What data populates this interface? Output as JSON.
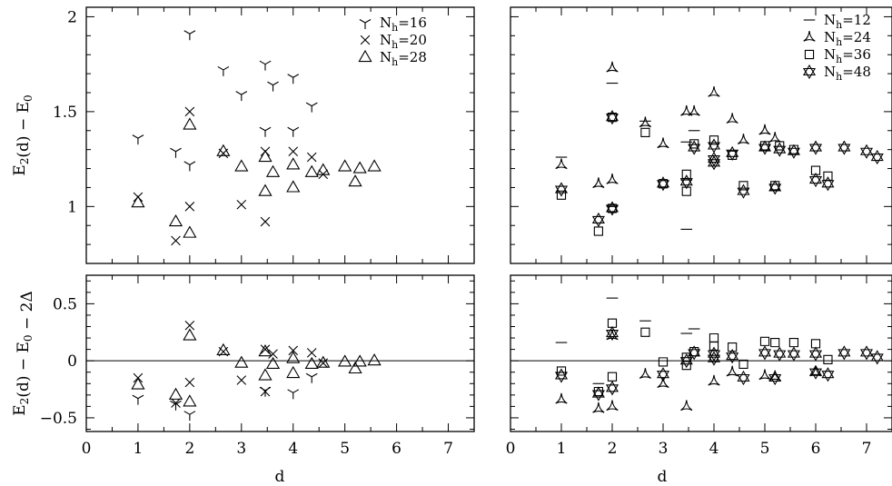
{
  "chart_data": [
    {
      "type": "scatter",
      "panel": "top-left",
      "ylabel": "E2(d) − E0",
      "xlim": [
        0,
        7.5
      ],
      "ylim": [
        0.7,
        2.05
      ],
      "yticks": [
        1,
        1.5,
        2
      ],
      "ytick_labels": [
        "1",
        "1.5",
        "2"
      ],
      "legend_position": "top-right",
      "series": [
        {
          "name": "Nh=16",
          "marker": "tri-down",
          "x": [
            1.0,
            1.73,
            2.0,
            2.0,
            2.65,
            3.0,
            3.46,
            3.46,
            3.61,
            4.0,
            4.0,
            4.36
          ],
          "y": [
            1.36,
            1.29,
            1.91,
            1.22,
            1.72,
            1.59,
            1.75,
            1.4,
            1.64,
            1.68,
            1.4,
            1.53
          ]
        },
        {
          "name": "Nh=20",
          "marker": "x",
          "x": [
            1.0,
            1.73,
            2.0,
            2.0,
            2.65,
            3.0,
            3.46,
            3.46,
            4.0,
            4.36,
            4.58
          ],
          "y": [
            1.05,
            0.82,
            1.5,
            1.0,
            1.28,
            1.01,
            1.29,
            0.92,
            1.29,
            1.26,
            1.17
          ]
        },
        {
          "name": "Nh=28",
          "marker": "triangle",
          "x": [
            1.0,
            1.73,
            2.0,
            2.0,
            2.65,
            3.0,
            3.46,
            3.46,
            3.61,
            4.0,
            4.0,
            4.36,
            4.58,
            5.0,
            5.2,
            5.29,
            5.57
          ],
          "y": [
            1.02,
            0.92,
            1.43,
            0.86,
            1.29,
            1.21,
            1.26,
            1.08,
            1.18,
            1.22,
            1.1,
            1.18,
            1.19,
            1.21,
            1.13,
            1.2,
            1.21
          ]
        }
      ]
    },
    {
      "type": "scatter",
      "panel": "top-right",
      "xlim": [
        0,
        7.5
      ],
      "ylim": [
        0.7,
        2.05
      ],
      "yticks": [
        1,
        1.5,
        2
      ],
      "legend_position": "top-right",
      "series": [
        {
          "name": "Nh=12",
          "marker": "dash",
          "x": [
            1.0,
            2.0,
            2.0,
            2.65,
            3.46,
            3.46,
            3.46,
            3.61
          ],
          "y": [
            1.26,
            1.65,
            1.0,
            1.45,
            1.34,
            1.14,
            0.88,
            1.4
          ]
        },
        {
          "name": "Nh=24",
          "marker": "tri-up",
          "x": [
            1.0,
            1.73,
            2.0,
            2.0,
            2.65,
            3.0,
            3.46,
            3.61,
            4.0,
            4.36,
            4.58,
            5.0,
            5.2
          ],
          "y": [
            1.22,
            1.12,
            1.73,
            1.14,
            1.44,
            1.33,
            1.5,
            1.5,
            1.6,
            1.46,
            1.35,
            1.4,
            1.36
          ]
        },
        {
          "name": "Nh=36",
          "marker": "square",
          "x": [
            1.0,
            1.73,
            2.0,
            2.0,
            2.65,
            3.0,
            3.46,
            3.46,
            3.61,
            4.0,
            4.36,
            4.58,
            5.0,
            5.2,
            5.29,
            5.57,
            6.0,
            6.24
          ],
          "y": [
            1.06,
            0.87,
            1.47,
            0.99,
            1.39,
            1.12,
            1.17,
            1.08,
            1.33,
            1.35,
            1.27,
            1.11,
            1.32,
            1.11,
            1.32,
            1.3,
            1.19,
            1.16
          ]
        },
        {
          "name": "Nh=48",
          "marker": "star",
          "x": [
            1.0,
            1.73,
            2.0,
            2.0,
            3.0,
            3.46,
            3.61,
            4.0,
            4.0,
            4.0,
            4.36,
            4.58,
            5.0,
            5.2,
            5.29,
            5.57,
            6.0,
            6.0,
            6.24,
            6.56,
            7.0,
            7.21
          ],
          "y": [
            1.09,
            0.93,
            1.47,
            0.99,
            1.12,
            1.13,
            1.31,
            1.32,
            1.25,
            1.23,
            1.28,
            1.08,
            1.31,
            1.1,
            1.3,
            1.29,
            1.31,
            1.14,
            1.12,
            1.31,
            1.29,
            1.26
          ]
        }
      ]
    },
    {
      "type": "scatter",
      "panel": "bottom-left",
      "xlabel": "d",
      "ylabel": "E2(d) − E0 − 2Δ",
      "xlim": [
        0,
        7.5
      ],
      "ylim": [
        -0.62,
        0.75
      ],
      "xticks": [
        0,
        1,
        2,
        3,
        4,
        5,
        6,
        7
      ],
      "xtick_labels": [
        "0",
        "1",
        "2",
        "3",
        "4",
        "5",
        "6",
        "7"
      ],
      "yticks": [
        -0.5,
        0,
        0.5
      ],
      "ytick_labels": [
        "−0.5",
        "0",
        "0.5"
      ],
      "zero_line": true,
      "series": [
        {
          "name": "Nh=16",
          "marker": "tri-down",
          "x": [
            1.0,
            1.73,
            2.0,
            3.46,
            4.0,
            4.36
          ],
          "y": [
            -0.33,
            -0.38,
            -0.47,
            -0.26,
            -0.28,
            -0.14
          ]
        },
        {
          "name": "Nh=20",
          "marker": "x",
          "x": [
            1.0,
            1.73,
            2.0,
            2.0,
            2.65,
            3.0,
            3.46,
            3.46,
            3.61,
            4.0,
            4.36,
            4.58
          ],
          "y": [
            -0.15,
            -0.37,
            0.31,
            -0.19,
            0.08,
            -0.17,
            0.1,
            -0.27,
            0.06,
            0.09,
            0.07,
            -0.02
          ]
        },
        {
          "name": "Nh=28",
          "marker": "triangle",
          "x": [
            1.0,
            1.73,
            2.0,
            2.0,
            2.65,
            3.0,
            3.46,
            3.46,
            3.61,
            4.0,
            4.0,
            4.36,
            4.58,
            5.0,
            5.2,
            5.29,
            5.57
          ],
          "y": [
            -0.21,
            -0.3,
            0.22,
            -0.36,
            0.09,
            -0.02,
            0.08,
            -0.13,
            -0.03,
            0.02,
            -0.11,
            -0.03,
            -0.02,
            -0.01,
            -0.07,
            -0.01,
            0.0
          ]
        }
      ]
    },
    {
      "type": "scatter",
      "panel": "bottom-right",
      "xlabel": "d",
      "xlim": [
        0,
        7.5
      ],
      "ylim": [
        -0.62,
        0.75
      ],
      "xticks": [
        0,
        1,
        2,
        3,
        4,
        5,
        6,
        7
      ],
      "xtick_labels": [
        "0",
        "1",
        "2",
        "3",
        "4",
        "5",
        "6",
        "7"
      ],
      "yticks": [
        -0.5,
        0,
        0.5
      ],
      "zero_line": true,
      "series": [
        {
          "name": "Nh=12",
          "marker": "dash",
          "x": [
            1.0,
            2.0,
            2.65,
            3.46,
            3.61,
            1.73
          ],
          "y": [
            0.16,
            0.55,
            0.35,
            0.24,
            0.28,
            -0.2
          ]
        },
        {
          "name": "Nh=24",
          "marker": "tri-up",
          "x": [
            1.0,
            1.73,
            2.0,
            2.0,
            2.65,
            3.0,
            3.46,
            4.0,
            4.36,
            5.0,
            5.2,
            6.0
          ],
          "y": [
            -0.34,
            -0.42,
            0.22,
            -0.4,
            -0.12,
            -0.2,
            -0.4,
            -0.18,
            -0.1,
            -0.13,
            -0.14,
            -0.1
          ]
        },
        {
          "name": "Nh=36",
          "marker": "square",
          "x": [
            1.0,
            1.73,
            2.0,
            2.0,
            2.65,
            3.0,
            3.46,
            3.46,
            3.61,
            4.0,
            4.0,
            4.36,
            4.58,
            5.0,
            5.2,
            5.57,
            6.0,
            6.24
          ],
          "y": [
            -0.09,
            -0.27,
            0.33,
            -0.14,
            0.25,
            -0.01,
            0.03,
            -0.04,
            0.08,
            0.2,
            0.13,
            0.12,
            -0.03,
            0.17,
            0.16,
            0.16,
            0.15,
            0.01
          ]
        },
        {
          "name": "Nh=48",
          "marker": "star",
          "x": [
            1.0,
            1.73,
            2.0,
            2.0,
            3.0,
            3.46,
            3.61,
            4.0,
            4.0,
            4.36,
            4.58,
            5.0,
            5.2,
            5.29,
            5.57,
            6.0,
            6.0,
            6.24,
            6.56,
            7.0,
            7.21
          ],
          "y": [
            -0.13,
            -0.29,
            0.24,
            -0.24,
            -0.12,
            0.0,
            0.07,
            0.06,
            0.02,
            0.04,
            -0.15,
            0.07,
            -0.15,
            0.06,
            0.06,
            0.06,
            -0.1,
            -0.12,
            0.07,
            0.07,
            0.03
          ]
        }
      ]
    }
  ]
}
